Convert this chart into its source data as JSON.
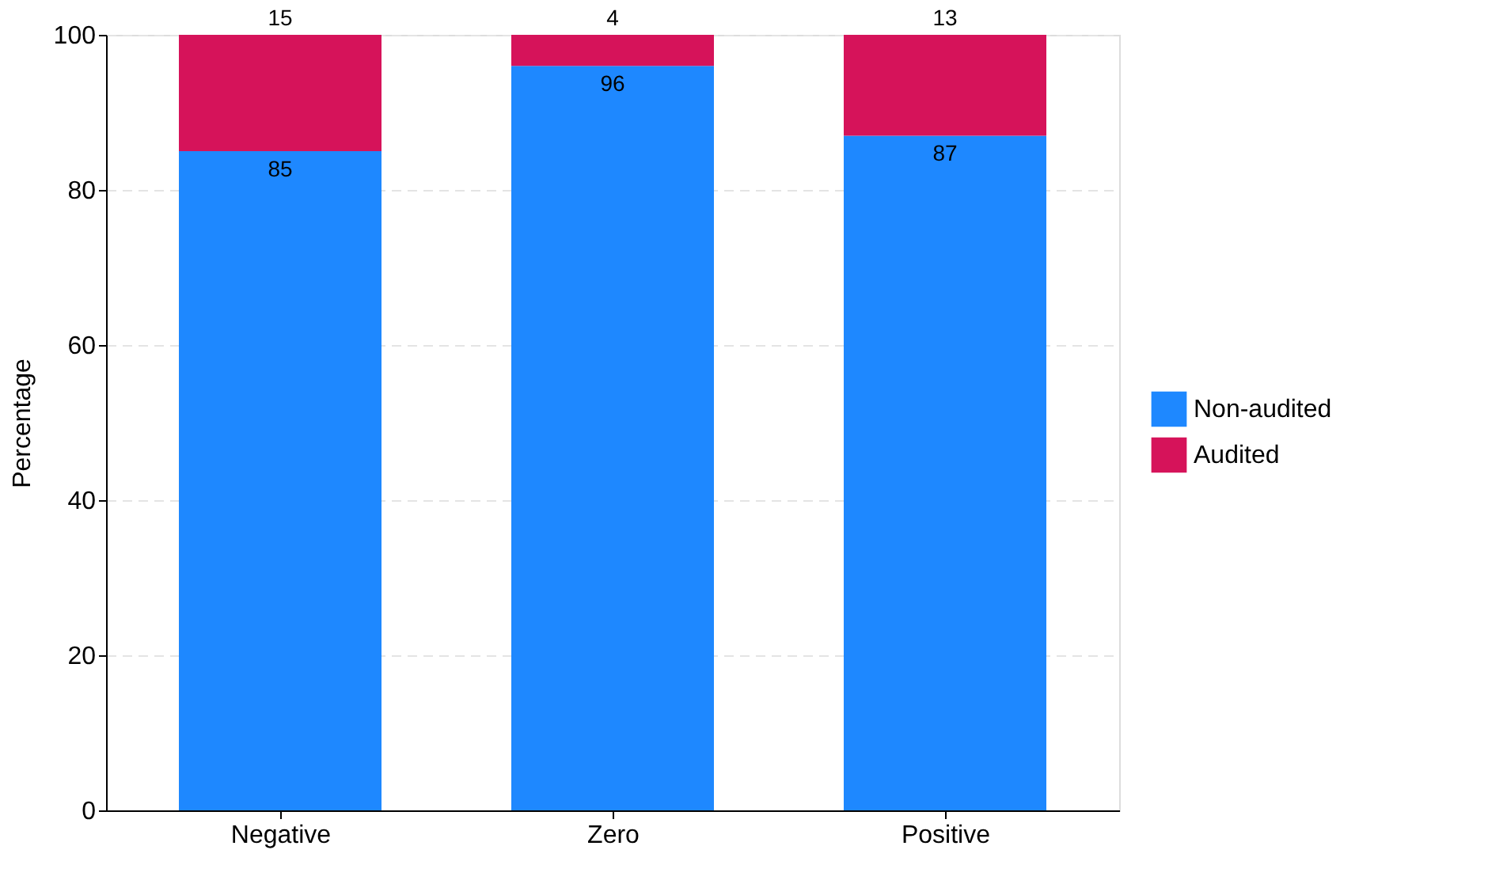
{
  "chart_data": {
    "type": "bar",
    "stacked": true,
    "categories": [
      "Negative",
      "Zero",
      "Positive"
    ],
    "ylabel": "Percentage",
    "series": [
      {
        "name": "Non-audited",
        "color": "#1e88ff",
        "values": [
          85,
          96,
          87
        ]
      },
      {
        "name": "Audited",
        "color": "#d6135a",
        "values": [
          15,
          4,
          13
        ]
      }
    ],
    "ylim": [
      0,
      100
    ],
    "yticks": [
      0,
      20,
      40,
      60,
      80,
      100
    ],
    "grid": "y",
    "legend": "right",
    "data_labels": true
  }
}
